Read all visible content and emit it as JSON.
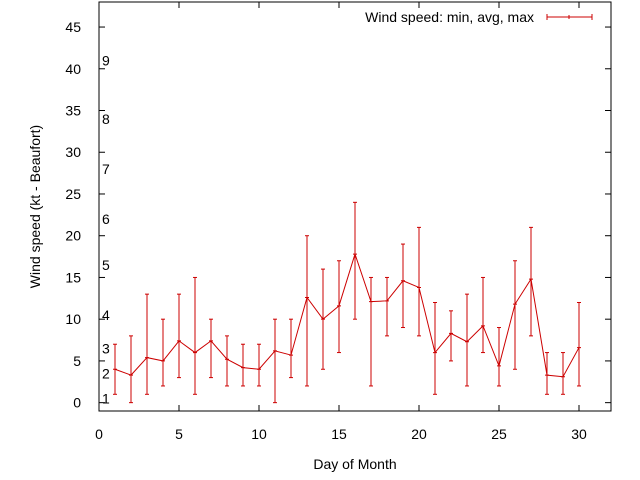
{
  "chart_data": {
    "type": "line",
    "title": "",
    "xlabel": "Day of Month",
    "ylabel": "Wind speed (kt - Beaufort)",
    "xlim": [
      0,
      32
    ],
    "ylim": [
      -1,
      48
    ],
    "x_ticks": [
      0,
      5,
      10,
      15,
      20,
      25,
      30
    ],
    "y_ticks": [
      0,
      5,
      10,
      15,
      20,
      25,
      30,
      35,
      40,
      45
    ],
    "grid": false,
    "legend_position": "top-right",
    "series": [
      {
        "name": "Wind speed: min, avg, max",
        "color": "#cc0000",
        "x": [
          1,
          2,
          3,
          4,
          5,
          6,
          7,
          8,
          9,
          10,
          11,
          12,
          13,
          14,
          15,
          16,
          17,
          18,
          19,
          20,
          21,
          22,
          23,
          24,
          25,
          26,
          27,
          28,
          29,
          30
        ],
        "avg": [
          4.0,
          3.3,
          5.4,
          5.0,
          7.4,
          6.0,
          7.4,
          5.2,
          4.2,
          4.0,
          6.2,
          5.7,
          12.6,
          10.0,
          11.6,
          17.8,
          12.1,
          12.2,
          14.6,
          13.8,
          6.0,
          8.3,
          7.3,
          9.2,
          4.4,
          11.8,
          14.8,
          3.3,
          3.1,
          6.6
        ],
        "min": [
          1,
          0,
          1,
          2,
          3,
          1,
          3,
          2,
          2,
          2,
          0,
          3,
          2,
          4,
          6,
          10,
          2,
          8,
          9,
          8,
          1,
          5,
          2,
          6,
          2,
          4,
          8,
          1,
          1,
          2
        ],
        "max": [
          7,
          8,
          13,
          10,
          13,
          15,
          10,
          8,
          7,
          7,
          10,
          10,
          20,
          16,
          17,
          24,
          15,
          15,
          19,
          21,
          12,
          11,
          13,
          15,
          9,
          17,
          21,
          6,
          6,
          12
        ]
      }
    ],
    "annotations": [
      {
        "text": "1",
        "x": 0.5,
        "y": 0.5
      },
      {
        "text": "2",
        "x": 0.5,
        "y": 3.5
      },
      {
        "text": "3",
        "x": 0.5,
        "y": 6.5
      },
      {
        "text": "4",
        "x": 0.5,
        "y": 10.5
      },
      {
        "text": "5",
        "x": 0.5,
        "y": 16.5
      },
      {
        "text": "6",
        "x": 0.5,
        "y": 22
      },
      {
        "text": "7",
        "x": 0.5,
        "y": 28
      },
      {
        "text": "8",
        "x": 0.5,
        "y": 34
      },
      {
        "text": "9",
        "x": 0.5,
        "y": 41
      }
    ]
  }
}
